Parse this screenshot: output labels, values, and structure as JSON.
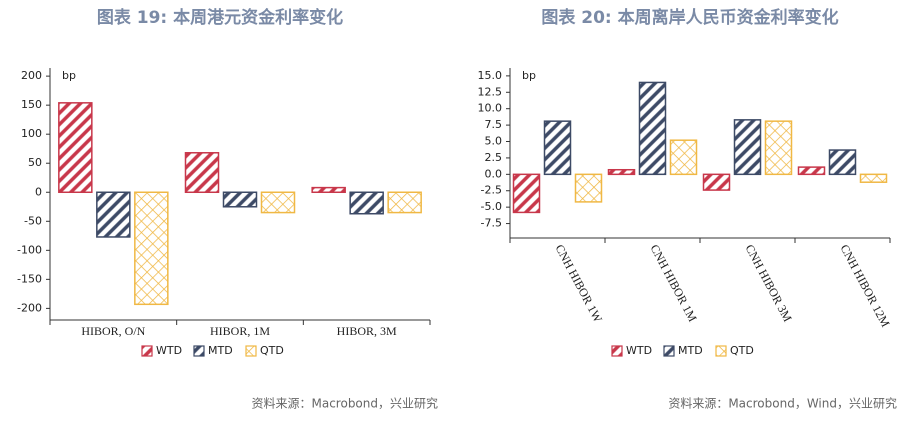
{
  "chart_data": [
    {
      "type": "bar",
      "title": "图表 19: 本周港元资金利率变化",
      "source": "资料来源：Macrobond，兴业研究",
      "unit_label": "bp",
      "categories": [
        "HIBOR, O/N",
        "HIBOR, 1M",
        "HIBOR, 3M"
      ],
      "series": [
        {
          "name": "WTD",
          "color": "#c8374a",
          "values": [
            154,
            68,
            8
          ]
        },
        {
          "name": "MTD",
          "color": "#3d4a66",
          "values": [
            -77,
            -25,
            -37
          ]
        },
        {
          "name": "QTD",
          "color": "#f0b844",
          "values": [
            -193,
            -35,
            -35
          ]
        }
      ],
      "ylim": [
        -220,
        214
      ],
      "yticks": [
        200,
        150,
        100,
        50,
        0,
        -50,
        -100,
        -150,
        -200
      ]
    },
    {
      "type": "bar",
      "title": "图表 20: 本周离岸人民币资金利率变化",
      "source": "资料来源：Macrobond，Wind，兴业研究",
      "unit_label": "bp",
      "categories": [
        "CNH HIBOR 1W",
        "CNH HIBOR 1M",
        "CNH HIBOR 3M",
        "CNH HIBOR 12M"
      ],
      "series": [
        {
          "name": "WTD",
          "color": "#c8374a",
          "values": [
            -5.8,
            0.7,
            -2.4,
            1.1
          ]
        },
        {
          "name": "MTD",
          "color": "#3d4a66",
          "values": [
            8.1,
            14.0,
            8.3,
            3.7
          ]
        },
        {
          "name": "QTD",
          "color": "#f0b844",
          "values": [
            -4.2,
            5.2,
            8.1,
            -1.2
          ]
        }
      ],
      "ylim": [
        -9.7,
        16.2
      ],
      "yticks": [
        {
          "value": 15,
          "label": "15.0"
        },
        {
          "value": 12.5,
          "label": "12.5"
        },
        {
          "value": 10,
          "label": "10.0"
        },
        7.5,
        {
          "value": 5,
          "label": "5.0"
        },
        2.5,
        {
          "value": 0,
          "label": "0.0"
        },
        -2.5,
        {
          "value": -5,
          "label": "-5.0"
        },
        -7.5
      ]
    }
  ]
}
